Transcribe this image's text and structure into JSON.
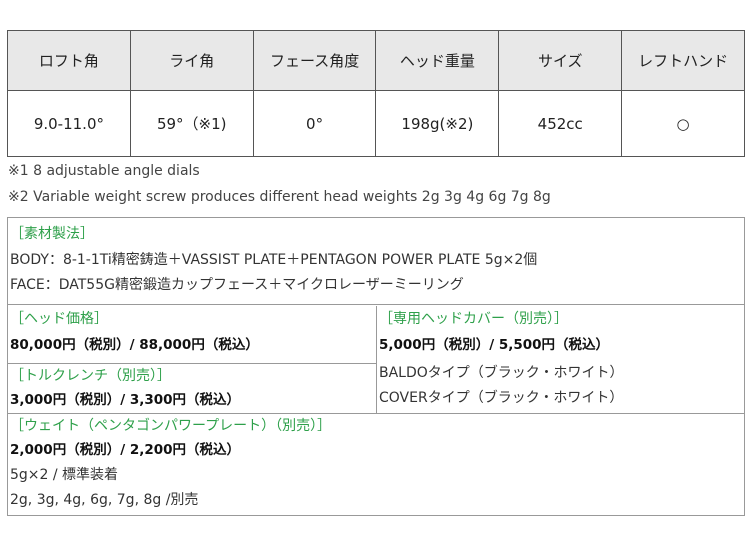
{
  "spec_table": {
    "headers": [
      "ロフト角",
      "ライ角",
      "フェース角度",
      "ヘッド重量",
      "サイズ",
      "レフトハンド"
    ],
    "values": [
      "9.0-11.0°",
      "59°（※1)",
      "0°",
      "198g(※2)",
      "452cc",
      "○"
    ]
  },
  "notes": [
    "※1  8 adjustable angle dials",
    "※2 Variable weight screw produces different head weights 2g 3g 4g 6g 7g 8g"
  ],
  "materials": {
    "heading": "［素材製法］",
    "lines": [
      "BODY：8-1-1Ti精密鋳造＋VASSIST PLATE＋PENTAGON POWER PLATE 5g×2個",
      "FACE：DAT55G精密鍛造カップフェース＋マイクロレーザーミーリング"
    ]
  },
  "head_price": {
    "heading": "［ヘッド価格］",
    "price": "80,000円（税別）/ 88,000円（税込）"
  },
  "torque_wrench": {
    "heading": "［トルクレンチ（別売）］",
    "price": "3,000円（税別）/ 3,300円（税込）"
  },
  "head_cover": {
    "heading": "［専用ヘッドカバー（別売）］",
    "price": "5,000円（税別）/ 5,500円（税込）",
    "lines": [
      "BALDOタイプ（ブラック・ホワイト）",
      "COVERタイプ（ブラック・ホワイト）"
    ]
  },
  "weight": {
    "heading": "［ウェイト（ペンタゴンパワープレート）（別売）］",
    "price": "2,000円（税別）/ 2,200円（税込）",
    "lines": [
      "5g×2 / 標準装着",
      "2g, 3g, 4g, 6g, 7g, 8g /別売"
    ]
  },
  "colors": {
    "heading_green": "#2ea04a",
    "header_bg": "#e8e8e8"
  }
}
